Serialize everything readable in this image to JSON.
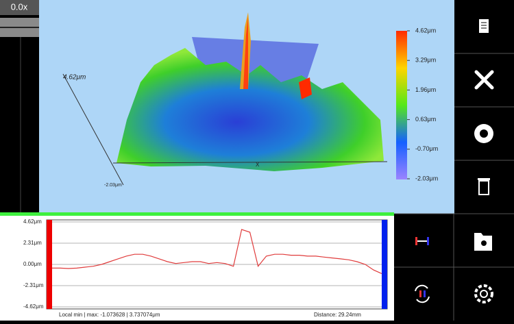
{
  "zoom": "0.0x",
  "view3d": {
    "z_top_label": "4.62μm",
    "z_bottom_label": "-2.03μm",
    "x_axis_label": "X",
    "colorbar": {
      "ticks": [
        {
          "value": 4.62,
          "label": "4.62μm"
        },
        {
          "value": 3.29,
          "label": "3.29μm"
        },
        {
          "value": 1.96,
          "label": "1.96μm"
        },
        {
          "value": 0.63,
          "label": "0.63μm"
        },
        {
          "value": -0.7,
          "label": "-0.70μm"
        },
        {
          "value": -2.03,
          "label": "-2.03μm"
        }
      ]
    }
  },
  "chart_data": {
    "type": "line",
    "color": "#e03b3b",
    "ylim": [
      -4.62,
      4.62
    ],
    "yticks": [
      {
        "value": 4.62,
        "label": "4.62μm"
      },
      {
        "value": 2.31,
        "label": "2.31μm"
      },
      {
        "value": 0,
        "label": "0.00μm"
      },
      {
        "value": -2.31,
        "label": "-2.31μm"
      },
      {
        "value": -4.62,
        "label": "-4.62μm"
      }
    ],
    "values": [
      -0.4,
      -0.4,
      -0.45,
      -0.4,
      -0.3,
      -0.2,
      0,
      0.3,
      0.6,
      0.9,
      1.1,
      1.1,
      0.9,
      0.6,
      0.3,
      0.1,
      0.2,
      0.3,
      0.3,
      0.1,
      0.2,
      0.1,
      -0.2,
      3.8,
      3.5,
      -0.2,
      0.9,
      1.1,
      1.1,
      1.0,
      1.0,
      0.9,
      0.9,
      0.8,
      0.7,
      0.6,
      0.5,
      0.3,
      0.0,
      -0.6,
      -1.0
    ],
    "grid": true,
    "footer_left": "Local min | max: -1.073628 | 3.737074μm",
    "footer_right": "Distance: 29.24mm"
  }
}
